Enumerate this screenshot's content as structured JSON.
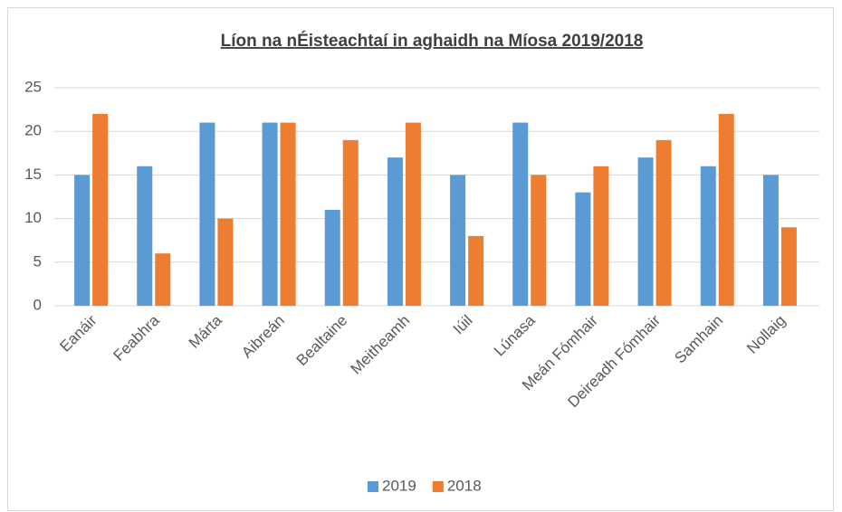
{
  "chart_data": {
    "type": "bar",
    "title": "Líon na nÉisteachtaí in aghaidh na Míosa 2019/2018",
    "categories": [
      "Eanáir",
      "Feabhra",
      "Márta",
      "Aibreán",
      "Bealtaine",
      "Meitheamh",
      "Iúil",
      "Lúnasa",
      "Meán Fómhair",
      "Deireadh Fómhair",
      "Samhain",
      "Nollaig"
    ],
    "series": [
      {
        "name": "2019",
        "color": "#5b9bd5",
        "values": [
          15,
          16,
          21,
          21,
          11,
          17,
          15,
          21,
          13,
          17,
          16,
          15
        ]
      },
      {
        "name": "2018",
        "color": "#ed7d31",
        "values": [
          22,
          6,
          10,
          21,
          19,
          21,
          8,
          15,
          16,
          19,
          22,
          9
        ]
      }
    ],
    "ylim": [
      0,
      25
    ],
    "yticks": [
      0,
      5,
      10,
      15,
      20,
      25
    ],
    "grid": true,
    "legend": "bottom"
  }
}
